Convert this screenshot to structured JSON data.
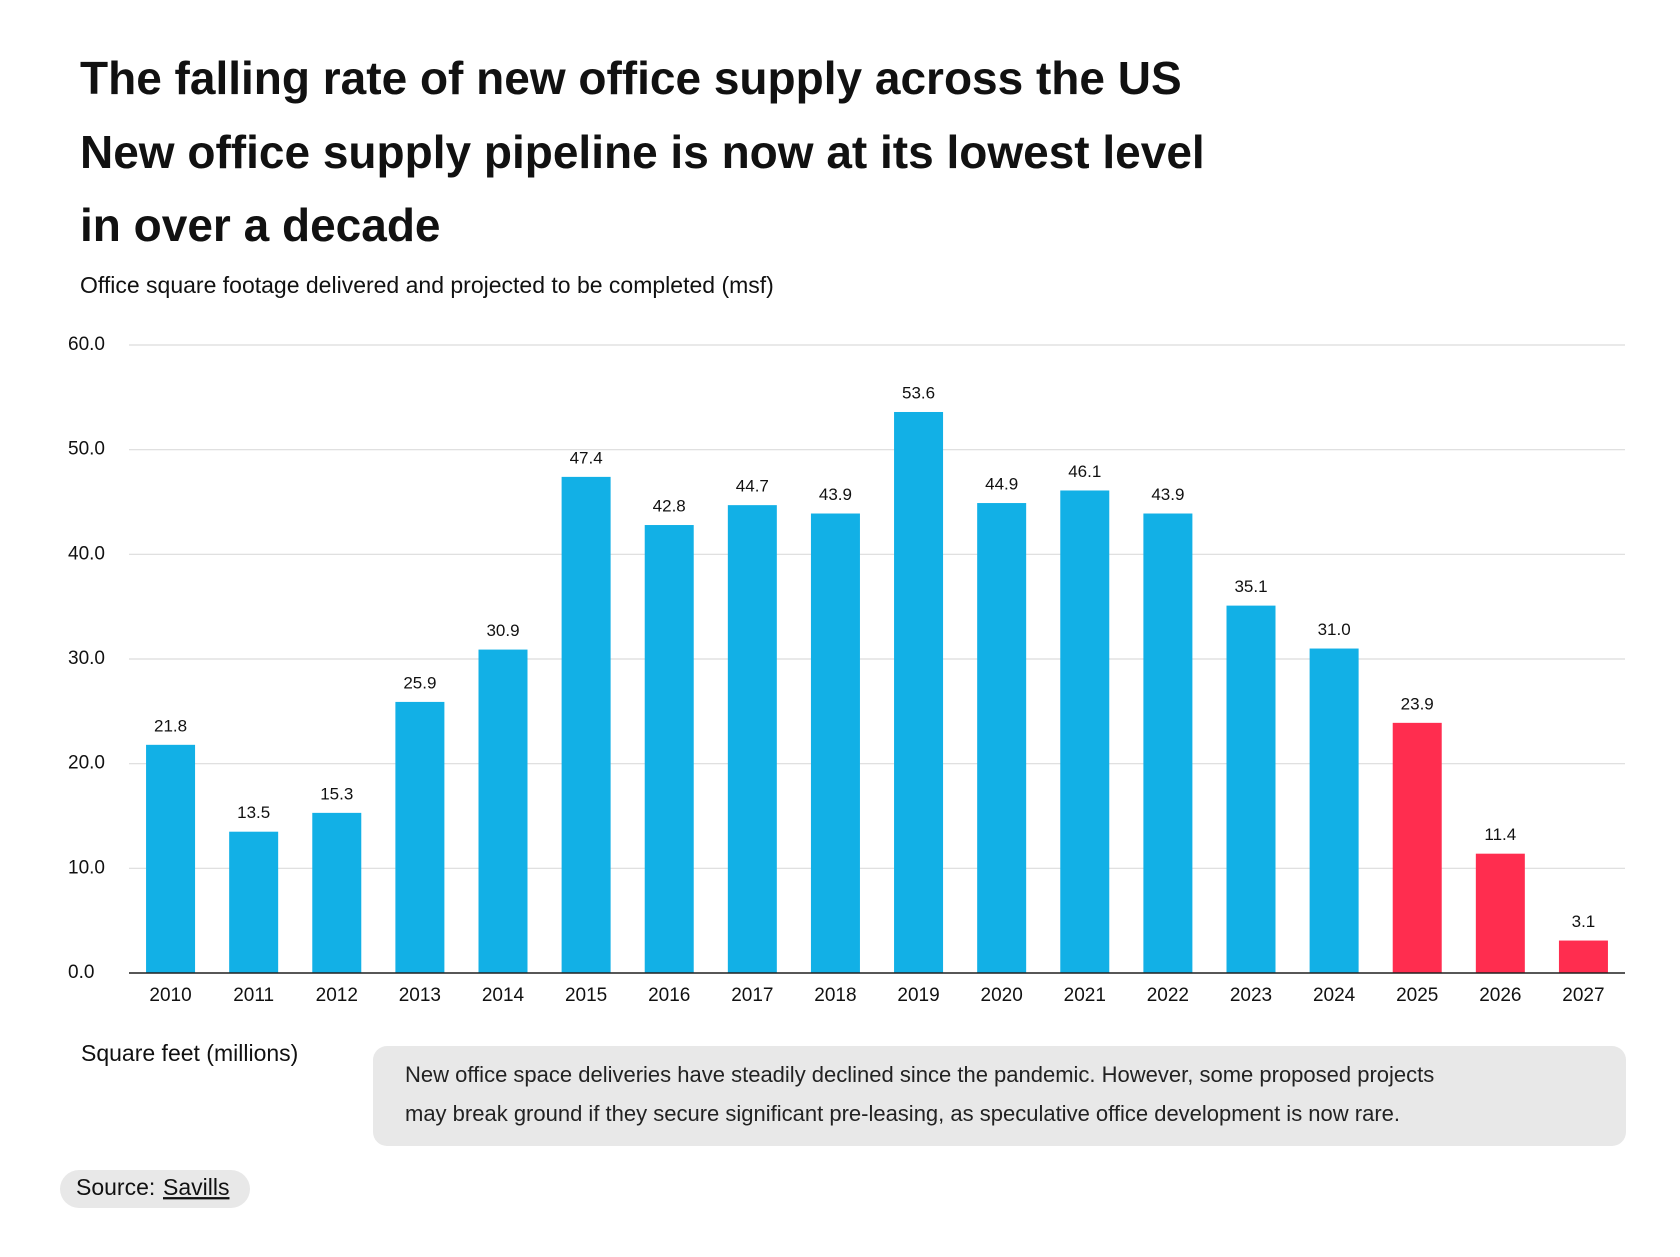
{
  "chart_data": {
    "type": "bar",
    "title_lines": [
      "The falling rate of new office supply across the US",
      "New office supply pipeline is now at its lowest level",
      "in over a decade"
    ],
    "subtitle": "Office square footage delivered and projected to be completed (msf)",
    "y_axis_label": "Square feet (millions)",
    "categories": [
      "2010",
      "2011",
      "2012",
      "2013",
      "2014",
      "2015",
      "2016",
      "2017",
      "2018",
      "2019",
      "2020",
      "2021",
      "2022",
      "2023",
      "2024",
      "2025",
      "2026",
      "2027"
    ],
    "values": [
      21.8,
      13.5,
      15.3,
      25.9,
      30.9,
      47.4,
      42.8,
      44.7,
      43.9,
      53.6,
      44.9,
      46.1,
      43.9,
      35.1,
      31.0,
      23.9,
      11.4,
      3.1
    ],
    "value_labels": [
      "21.8",
      "13.5",
      "15.3",
      "25.9",
      "30.9",
      "47.4",
      "42.8",
      "44.7",
      "43.9",
      "53.6",
      "44.9",
      "46.1",
      "43.9",
      "35.1",
      "31.0",
      "23.9",
      "11.4",
      "3.1"
    ],
    "colors": [
      "#12b0e6",
      "#12b0e6",
      "#12b0e6",
      "#12b0e6",
      "#12b0e6",
      "#12b0e6",
      "#12b0e6",
      "#12b0e6",
      "#12b0e6",
      "#12b0e6",
      "#12b0e6",
      "#12b0e6",
      "#12b0e6",
      "#12b0e6",
      "#12b0e6",
      "#ff2d4f",
      "#ff2d4f",
      "#ff2d4f"
    ],
    "ylim": [
      0,
      60
    ],
    "yticks": [
      {
        "value": 0,
        "label": "0.0"
      },
      {
        "value": 10,
        "label": "10.0"
      },
      {
        "value": 20,
        "label": "20.0"
      },
      {
        "value": 30,
        "label": "30.0"
      },
      {
        "value": 40,
        "label": "40.0"
      },
      {
        "value": 50,
        "label": "50.0"
      },
      {
        "value": 60,
        "label": "60.0"
      }
    ],
    "grid": true,
    "note_lines": [
      "New office space deliveries have steadily declined since the pandemic. However, some proposed projects",
      "may break ground if they secure significant pre-leasing, as speculative office development is now rare."
    ],
    "source": {
      "label": "Source:",
      "name": "Savills"
    }
  }
}
